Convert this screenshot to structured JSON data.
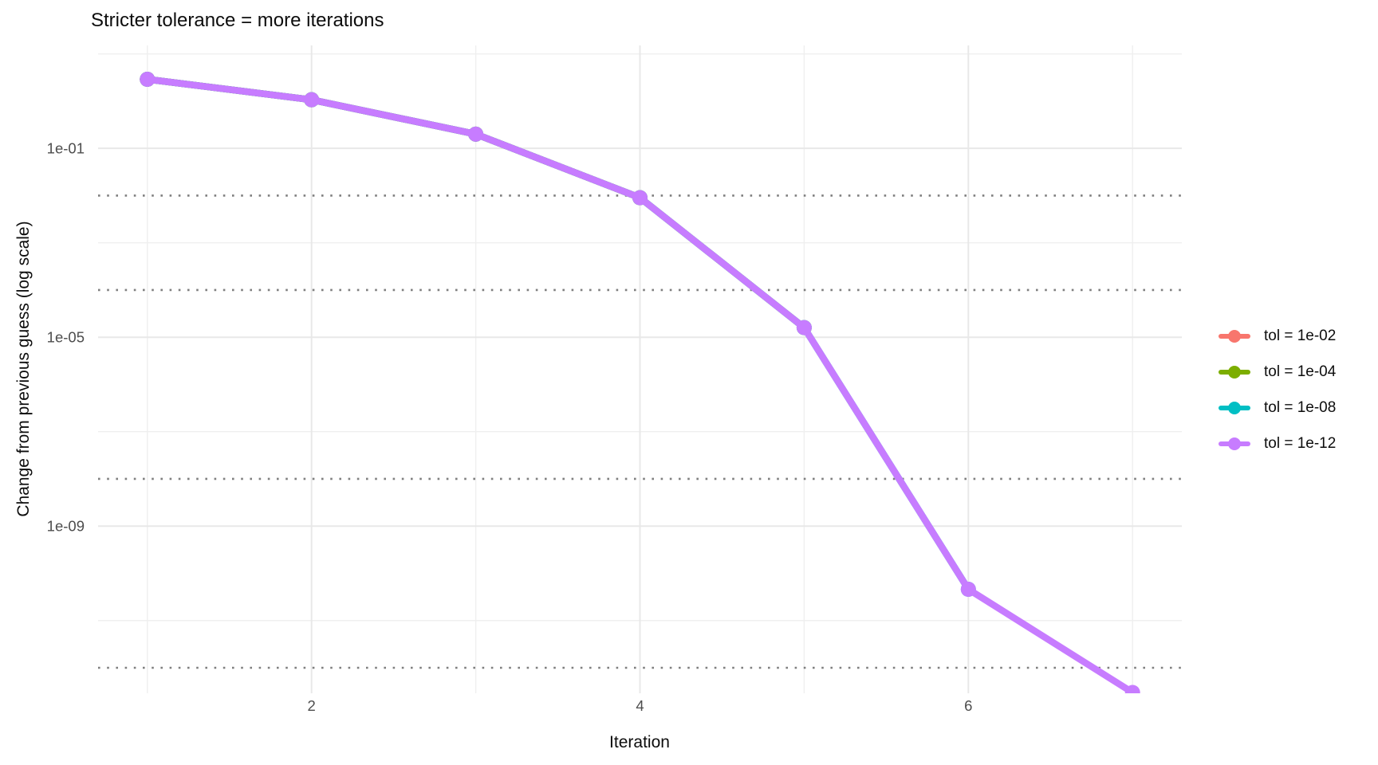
{
  "chart_data": {
    "type": "line",
    "title": "Stricter tolerance = more iterations",
    "xlabel": "Iteration",
    "ylabel": "Change from previous guess (log scale)",
    "x_scale": "linear",
    "y_scale": "log10",
    "grid": true,
    "legend_position": "right",
    "x_range": [
      0.7,
      7.3
    ],
    "y_log_range": [
      1.18,
      -12.54
    ],
    "x_ticks": [
      {
        "value": 2,
        "label": "2"
      },
      {
        "value": 4,
        "label": "4"
      },
      {
        "value": 6,
        "label": "6"
      }
    ],
    "x_minor_ticks": [
      1,
      3,
      5,
      7
    ],
    "y_ticks": [
      {
        "value": 0.1,
        "label": "1e-01"
      },
      {
        "value": 1e-05,
        "label": "1e-05"
      },
      {
        "value": 1e-09,
        "label": "1e-09"
      }
    ],
    "y_minor_ticks": [
      10.0,
      0.001,
      1e-07,
      1e-11
    ],
    "threshold_hlines": [
      0.01,
      0.0001,
      1e-08,
      1e-12
    ],
    "series": [
      {
        "name": "tol = 1e-02",
        "color": "#F8766D",
        "x": [
          1,
          2,
          3,
          4
        ],
        "y": [
          2.9,
          1.07,
          0.2,
          0.009
        ]
      },
      {
        "name": "tol = 1e-04",
        "color": "#7CAE00",
        "x": [
          1,
          2,
          3,
          4,
          5
        ],
        "y": [
          2.9,
          1.07,
          0.2,
          0.009,
          1.6e-05
        ]
      },
      {
        "name": "tol = 1e-08",
        "color": "#00BFC4",
        "x": [
          1,
          2,
          3,
          4,
          5,
          6
        ],
        "y": [
          2.9,
          1.07,
          0.2,
          0.009,
          1.6e-05,
          4.6e-11
        ]
      },
      {
        "name": "tol = 1e-12",
        "color": "#C77CFF",
        "x": [
          1,
          2,
          3,
          4,
          5,
          6,
          7
        ],
        "y": [
          2.9,
          1.07,
          0.2,
          0.009,
          1.6e-05,
          4.6e-11,
          3e-13
        ]
      }
    ],
    "style": {
      "major_grid_color": "#E8E8E8",
      "minor_grid_color": "#EFEFEF",
      "threshold_line_color": "#7F7F7F",
      "tick_label_color": "#4D4D4D"
    }
  }
}
